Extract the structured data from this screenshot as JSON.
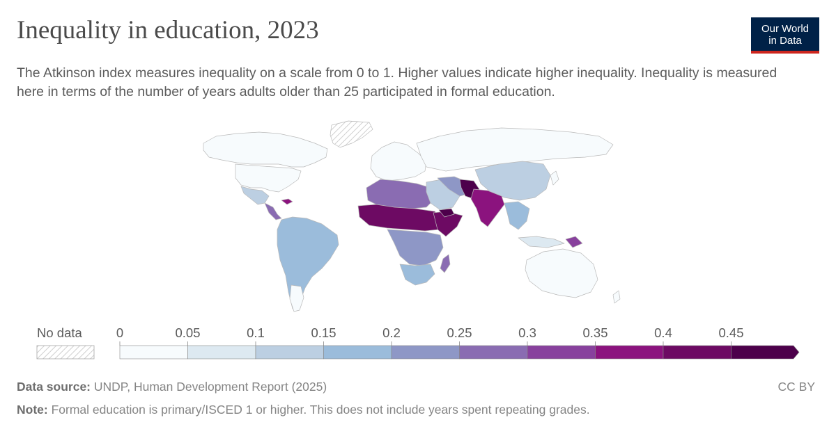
{
  "header": {
    "title": "Inequality in education, 2023",
    "subtitle": "The Atkinson index measures inequality on a scale from 0 to 1. Higher values indicate higher inequality. Inequality is measured here in terms of the number of years adults older than 25 participated in formal education."
  },
  "logo": {
    "line1": "Our World",
    "line2": "in Data",
    "bg": "#002147",
    "accent": "#ce261e"
  },
  "legend": {
    "no_data_label": "No data",
    "ticks": [
      "0",
      "0.05",
      "0.1",
      "0.15",
      "0.2",
      "0.25",
      "0.3",
      "0.35",
      "0.4",
      "0.45"
    ],
    "colors": [
      "#f7fbfd",
      "#dde9f1",
      "#bccfe2",
      "#9bbcdb",
      "#8e97c6",
      "#8a6cb2",
      "#88419d",
      "#8b137e",
      "#6d0a63",
      "#4d004b"
    ]
  },
  "footer": {
    "source_label": "Data source:",
    "source_text": "UNDP, Human Development Report (2025)",
    "note_label": "Note:",
    "note_text": "Formal education is primary/ISCED 1 or higher. This does not include years spent repeating grades.",
    "license": "CC BY"
  }
}
